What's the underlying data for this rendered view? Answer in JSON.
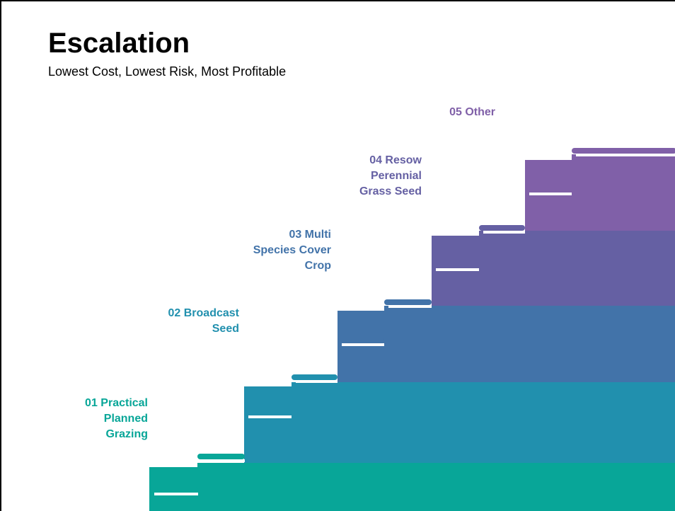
{
  "title": "Escalation",
  "subtitle": "Lowest Cost, Lowest Risk, Most Profitable",
  "steps": [
    {
      "label": "01 Practical\nPlanned\nGrazing",
      "color": "#08a698"
    },
    {
      "label": "02 Broadcast\nSeed",
      "color": "#2190ae"
    },
    {
      "label": "03 Multi\nSpecies Cover\nCrop",
      "color": "#4273a9"
    },
    {
      "label": "04 Resow\nPerennial\nGrass Seed",
      "color": "#6560a3"
    },
    {
      "label": "05 Other",
      "color": "#8060a8"
    }
  ]
}
